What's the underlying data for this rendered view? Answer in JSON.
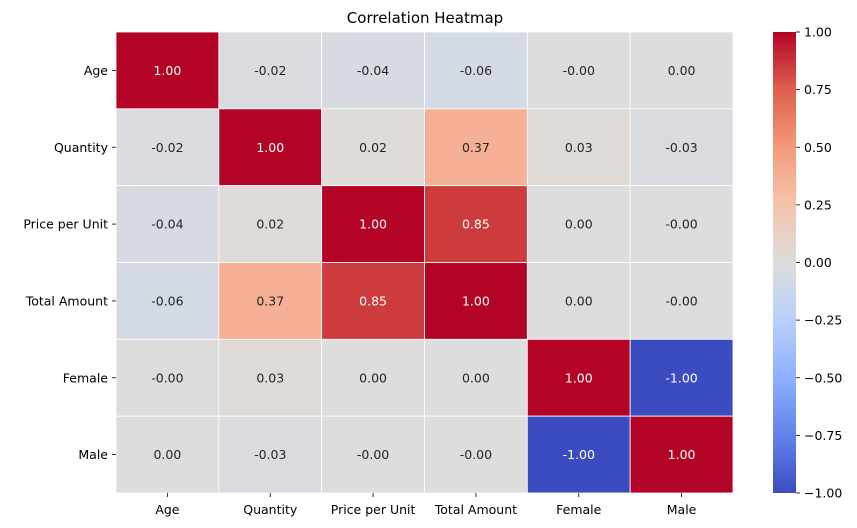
{
  "chart_data": {
    "type": "heatmap",
    "title": "Correlation Heatmap",
    "xlabel": "",
    "ylabel": "",
    "x_categories": [
      "Age",
      "Quantity",
      "Price per Unit",
      "Total Amount",
      "Female",
      "Male"
    ],
    "y_categories": [
      "Age",
      "Quantity",
      "Price per Unit",
      "Total Amount",
      "Female",
      "Male"
    ],
    "values": [
      [
        1.0,
        -0.02,
        -0.04,
        -0.06,
        -0.0,
        0.0
      ],
      [
        -0.02,
        1.0,
        0.02,
        0.37,
        0.03,
        -0.03
      ],
      [
        -0.04,
        0.02,
        1.0,
        0.85,
        0.0,
        -0.0
      ],
      [
        -0.06,
        0.37,
        0.85,
        1.0,
        0.0,
        -0.0
      ],
      [
        -0.0,
        0.03,
        0.0,
        0.0,
        1.0,
        -1.0
      ],
      [
        0.0,
        -0.03,
        -0.0,
        -0.0,
        -1.0,
        1.0
      ]
    ],
    "cell_labels": [
      [
        "1.00",
        "-0.02",
        "-0.04",
        "-0.06",
        "-0.00",
        "0.00"
      ],
      [
        "-0.02",
        "1.00",
        "0.02",
        "0.37",
        "0.03",
        "-0.03"
      ],
      [
        "-0.04",
        "0.02",
        "1.00",
        "0.85",
        "0.00",
        "-0.00"
      ],
      [
        "-0.06",
        "0.37",
        "0.85",
        "1.00",
        "0.00",
        "-0.00"
      ],
      [
        "-0.00",
        "0.03",
        "0.00",
        "0.00",
        "1.00",
        "-1.00"
      ],
      [
        "0.00",
        "-0.03",
        "-0.00",
        "-0.00",
        "-1.00",
        "1.00"
      ]
    ],
    "colormap": "coolwarm",
    "vmin": -1.0,
    "vmax": 1.0,
    "colorbar_ticks": [
      "1.00",
      "0.75",
      "0.50",
      "0.25",
      "0.00",
      "−0.25",
      "−0.50",
      "−0.75",
      "−1.00"
    ],
    "colorbar_tick_values": [
      1.0,
      0.75,
      0.5,
      0.25,
      0.0,
      -0.25,
      -0.5,
      -0.75,
      -1.0
    ],
    "grid": false,
    "cell_border_color": "#ffffff",
    "legend": "colorbar-right"
  }
}
